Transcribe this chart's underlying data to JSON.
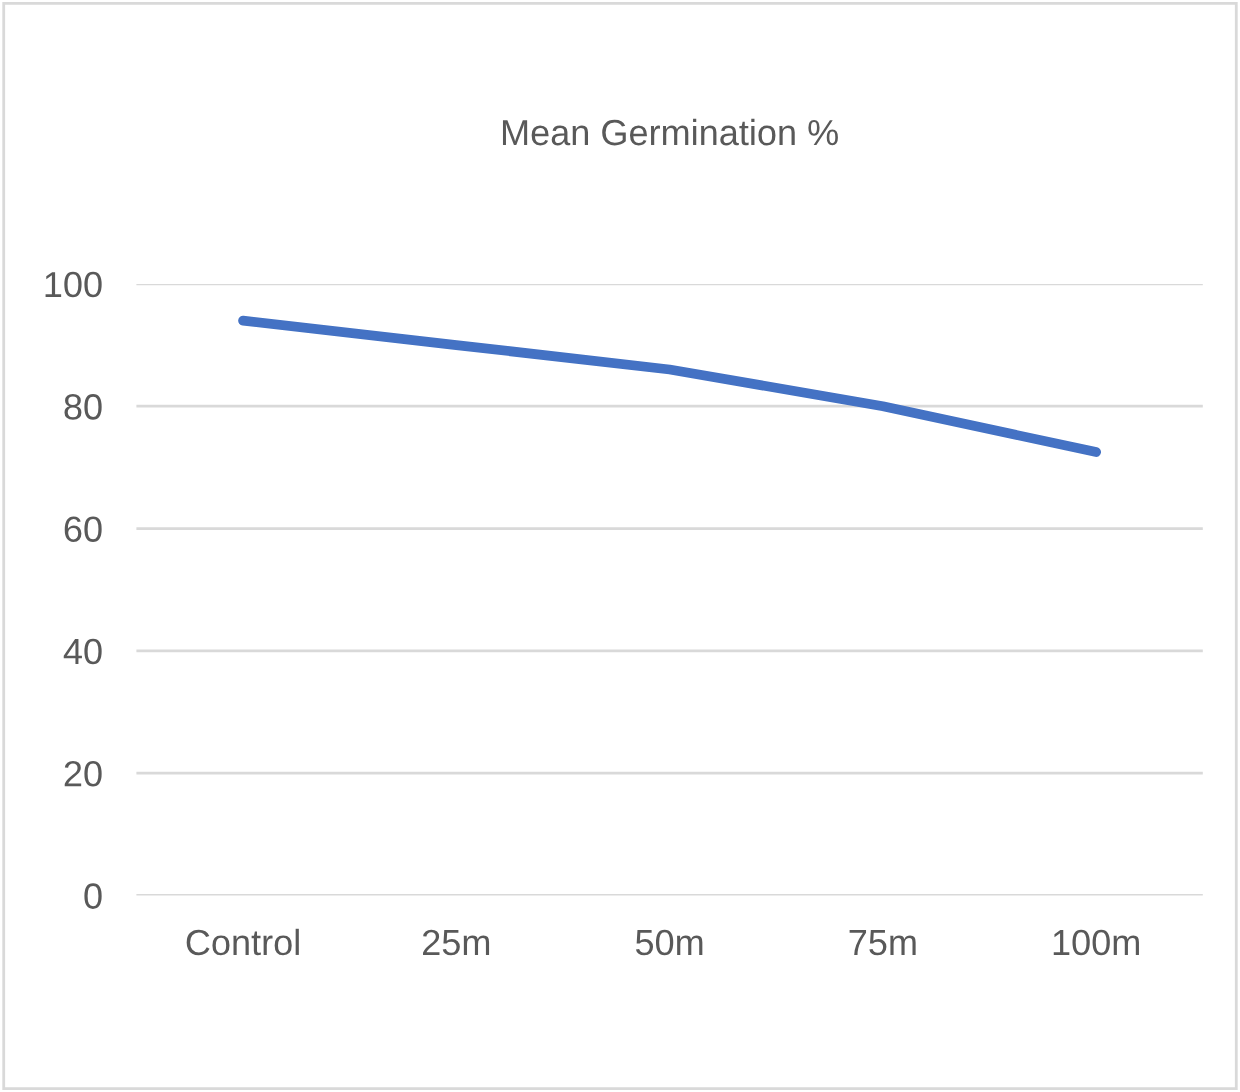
{
  "chart_data": {
    "type": "line",
    "title": "Mean Germination %",
    "categories": [
      "Control",
      "25m",
      "50m",
      "75m",
      "100m"
    ],
    "series": [
      {
        "color": "#4472c4",
        "values": [
          94,
          90,
          86,
          80,
          72.5
        ]
      }
    ],
    "ylim": [
      0,
      100
    ],
    "yticks": [
      0,
      20,
      40,
      60,
      80,
      100
    ],
    "grid": "y",
    "legend": false,
    "marker": "none",
    "line_style": "solid"
  }
}
